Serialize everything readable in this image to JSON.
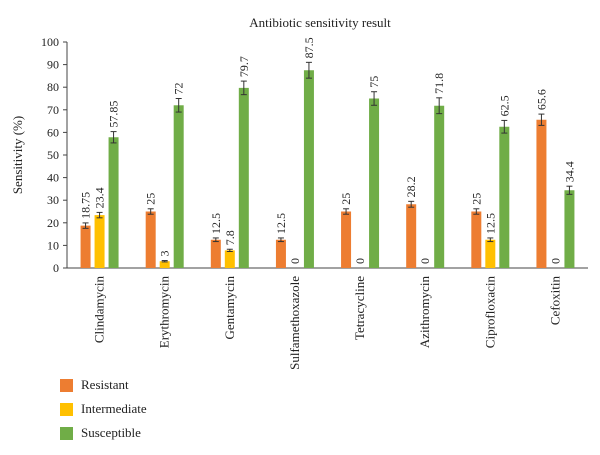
{
  "chart_data": {
    "type": "bar",
    "title": "Antibiotic sensitivity result",
    "ylabel": "Sensitivity (%)",
    "xlabel": "",
    "ylim": [
      0,
      100
    ],
    "yticks": [
      0,
      10,
      20,
      30,
      40,
      50,
      60,
      70,
      80,
      90,
      100
    ],
    "grid": false,
    "legend_position": "bottom-left",
    "categories": [
      "Clindamycin",
      "Erythromycin",
      "Gentamycin",
      "Sulfamethoxazole",
      "Tetracycline",
      "Azithromycin",
      "Ciprofloxacin",
      "Cefoxitin"
    ],
    "series": [
      {
        "name": "Resistant",
        "color": "#ED7D31",
        "values": [
          18.75,
          25,
          12.5,
          12.5,
          25,
          28.2,
          25,
          65.6
        ],
        "labels": [
          "18.75",
          "25",
          "12.5",
          "12.5",
          "25",
          "28.2",
          "25",
          "65.6"
        ],
        "errors": [
          1.2,
          1.2,
          0.8,
          0.8,
          1.2,
          1.3,
          1.2,
          2.5
        ]
      },
      {
        "name": "Intermediate",
        "color": "#FFC000",
        "values": [
          23.4,
          3,
          7.8,
          0,
          0,
          0,
          12.5,
          0
        ],
        "labels": [
          "23.4",
          "3",
          "7.8",
          "0",
          "0",
          "0",
          "12.5",
          "0"
        ],
        "errors": [
          1.2,
          0.3,
          0.5,
          0,
          0,
          0,
          0.8,
          0
        ]
      },
      {
        "name": "Susceptible",
        "color": "#70AD47",
        "values": [
          57.85,
          72,
          79.7,
          87.5,
          75,
          71.8,
          62.5,
          34.4
        ],
        "labels": [
          "57.85",
          "72",
          "79.7",
          "87.5",
          "75",
          "71.8",
          "62.5",
          "34.4"
        ],
        "errors": [
          2.5,
          3,
          3,
          3.5,
          3,
          3.5,
          2.8,
          1.8
        ]
      }
    ]
  }
}
